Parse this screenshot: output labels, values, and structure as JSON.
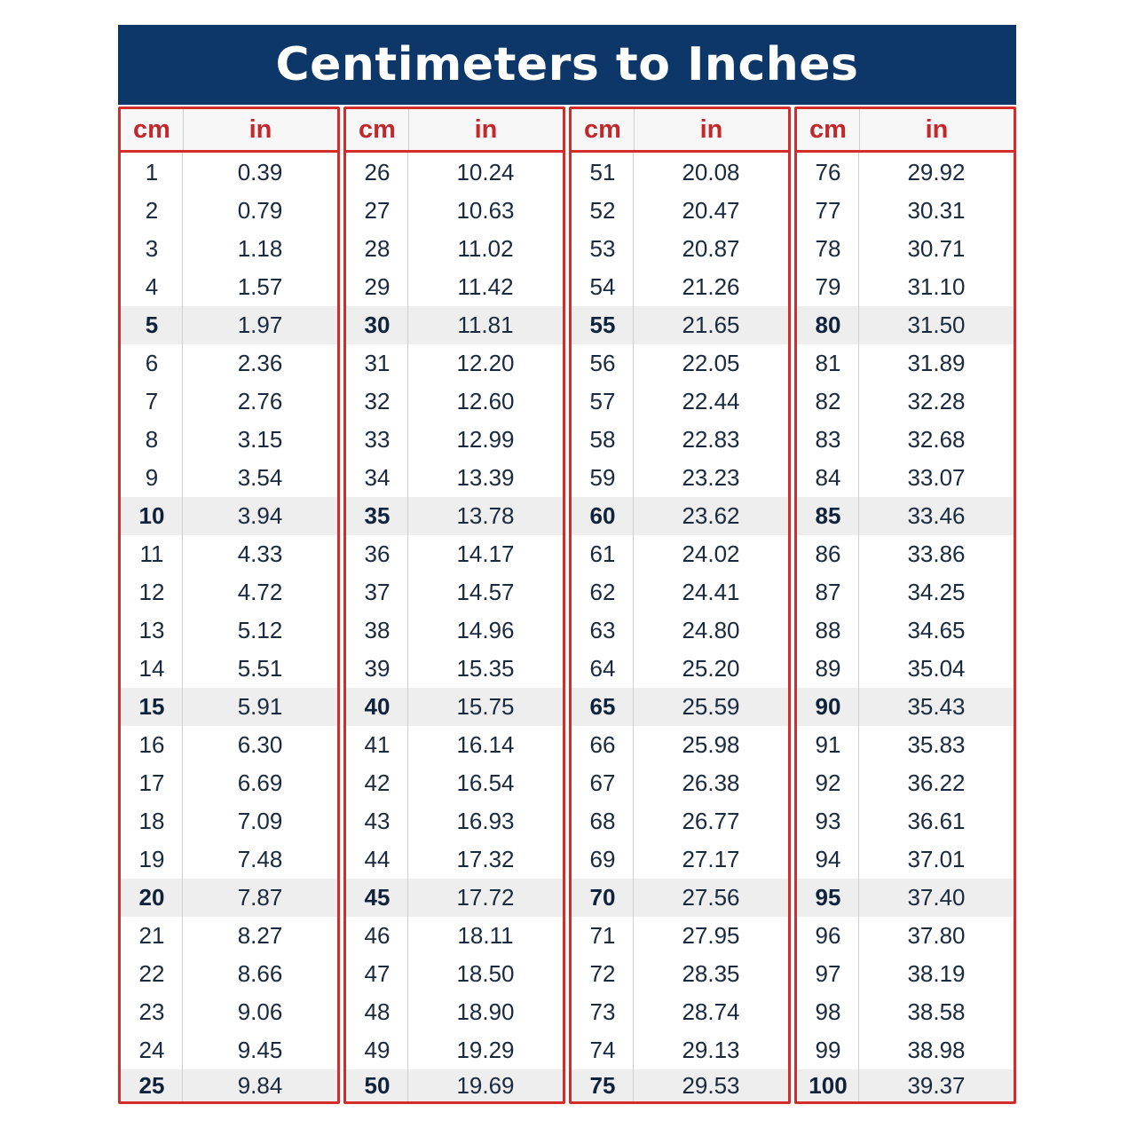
{
  "title": "Centimeters to Inches",
  "header": {
    "cm": "cm",
    "in": "in"
  },
  "colors": {
    "title_bg": "#0d3768",
    "title_text": "#ffffff",
    "border": "#d42b2b",
    "header_text": "#c0282b",
    "highlight_row": "#eeeeee",
    "body_text": "#1a2a3e"
  },
  "groups": [
    {
      "rows": [
        {
          "cm": "1",
          "in": "0.39"
        },
        {
          "cm": "2",
          "in": "0.79"
        },
        {
          "cm": "3",
          "in": "1.18"
        },
        {
          "cm": "4",
          "in": "1.57"
        },
        {
          "cm": "5",
          "in": "1.97"
        },
        {
          "cm": "6",
          "in": "2.36"
        },
        {
          "cm": "7",
          "in": "2.76"
        },
        {
          "cm": "8",
          "in": "3.15"
        },
        {
          "cm": "9",
          "in": "3.54"
        },
        {
          "cm": "10",
          "in": "3.94"
        },
        {
          "cm": "11",
          "in": "4.33"
        },
        {
          "cm": "12",
          "in": "4.72"
        },
        {
          "cm": "13",
          "in": "5.12"
        },
        {
          "cm": "14",
          "in": "5.51"
        },
        {
          "cm": "15",
          "in": "5.91"
        },
        {
          "cm": "16",
          "in": "6.30"
        },
        {
          "cm": "17",
          "in": "6.69"
        },
        {
          "cm": "18",
          "in": "7.09"
        },
        {
          "cm": "19",
          "in": "7.48"
        },
        {
          "cm": "20",
          "in": "7.87"
        },
        {
          "cm": "21",
          "in": "8.27"
        },
        {
          "cm": "22",
          "in": "8.66"
        },
        {
          "cm": "23",
          "in": "9.06"
        },
        {
          "cm": "24",
          "in": "9.45"
        },
        {
          "cm": "25",
          "in": "9.84"
        }
      ]
    },
    {
      "rows": [
        {
          "cm": "26",
          "in": "10.24"
        },
        {
          "cm": "27",
          "in": "10.63"
        },
        {
          "cm": "28",
          "in": "11.02"
        },
        {
          "cm": "29",
          "in": "11.42"
        },
        {
          "cm": "30",
          "in": "11.81"
        },
        {
          "cm": "31",
          "in": "12.20"
        },
        {
          "cm": "32",
          "in": "12.60"
        },
        {
          "cm": "33",
          "in": "12.99"
        },
        {
          "cm": "34",
          "in": "13.39"
        },
        {
          "cm": "35",
          "in": "13.78"
        },
        {
          "cm": "36",
          "in": "14.17"
        },
        {
          "cm": "37",
          "in": "14.57"
        },
        {
          "cm": "38",
          "in": "14.96"
        },
        {
          "cm": "39",
          "in": "15.35"
        },
        {
          "cm": "40",
          "in": "15.75"
        },
        {
          "cm": "41",
          "in": "16.14"
        },
        {
          "cm": "42",
          "in": "16.54"
        },
        {
          "cm": "43",
          "in": "16.93"
        },
        {
          "cm": "44",
          "in": "17.32"
        },
        {
          "cm": "45",
          "in": "17.72"
        },
        {
          "cm": "46",
          "in": "18.11"
        },
        {
          "cm": "47",
          "in": "18.50"
        },
        {
          "cm": "48",
          "in": "18.90"
        },
        {
          "cm": "49",
          "in": "19.29"
        },
        {
          "cm": "50",
          "in": "19.69"
        }
      ]
    },
    {
      "rows": [
        {
          "cm": "51",
          "in": "20.08"
        },
        {
          "cm": "52",
          "in": "20.47"
        },
        {
          "cm": "53",
          "in": "20.87"
        },
        {
          "cm": "54",
          "in": "21.26"
        },
        {
          "cm": "55",
          "in": "21.65"
        },
        {
          "cm": "56",
          "in": "22.05"
        },
        {
          "cm": "57",
          "in": "22.44"
        },
        {
          "cm": "58",
          "in": "22.83"
        },
        {
          "cm": "59",
          "in": "23.23"
        },
        {
          "cm": "60",
          "in": "23.62"
        },
        {
          "cm": "61",
          "in": "24.02"
        },
        {
          "cm": "62",
          "in": "24.41"
        },
        {
          "cm": "63",
          "in": "24.80"
        },
        {
          "cm": "64",
          "in": "25.20"
        },
        {
          "cm": "65",
          "in": "25.59"
        },
        {
          "cm": "66",
          "in": "25.98"
        },
        {
          "cm": "67",
          "in": "26.38"
        },
        {
          "cm": "68",
          "in": "26.77"
        },
        {
          "cm": "69",
          "in": "27.17"
        },
        {
          "cm": "70",
          "in": "27.56"
        },
        {
          "cm": "71",
          "in": "27.95"
        },
        {
          "cm": "72",
          "in": "28.35"
        },
        {
          "cm": "73",
          "in": "28.74"
        },
        {
          "cm": "74",
          "in": "29.13"
        },
        {
          "cm": "75",
          "in": "29.53"
        }
      ]
    },
    {
      "rows": [
        {
          "cm": "76",
          "in": "29.92"
        },
        {
          "cm": "77",
          "in": "30.31"
        },
        {
          "cm": "78",
          "in": "30.71"
        },
        {
          "cm": "79",
          "in": "31.10"
        },
        {
          "cm": "80",
          "in": "31.50"
        },
        {
          "cm": "81",
          "in": "31.89"
        },
        {
          "cm": "82",
          "in": "32.28"
        },
        {
          "cm": "83",
          "in": "32.68"
        },
        {
          "cm": "84",
          "in": "33.07"
        },
        {
          "cm": "85",
          "in": "33.46"
        },
        {
          "cm": "86",
          "in": "33.86"
        },
        {
          "cm": "87",
          "in": "34.25"
        },
        {
          "cm": "88",
          "in": "34.65"
        },
        {
          "cm": "89",
          "in": "35.04"
        },
        {
          "cm": "90",
          "in": "35.43"
        },
        {
          "cm": "91",
          "in": "35.83"
        },
        {
          "cm": "92",
          "in": "36.22"
        },
        {
          "cm": "93",
          "in": "36.61"
        },
        {
          "cm": "94",
          "in": "37.01"
        },
        {
          "cm": "95",
          "in": "37.40"
        },
        {
          "cm": "96",
          "in": "37.80"
        },
        {
          "cm": "97",
          "in": "38.19"
        },
        {
          "cm": "98",
          "in": "38.58"
        },
        {
          "cm": "99",
          "in": "38.98"
        },
        {
          "cm": "100",
          "in": "39.37"
        }
      ]
    }
  ]
}
